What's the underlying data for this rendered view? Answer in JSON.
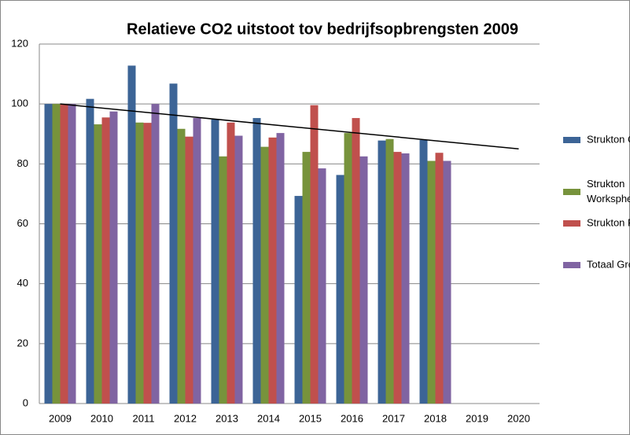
{
  "chart_data": {
    "type": "bar",
    "title": "Relatieve CO2 uitstoot tov bedrijfsopbrengsten 2009",
    "categories": [
      "2009",
      "2010",
      "2011",
      "2012",
      "2013",
      "2014",
      "2015",
      "2016",
      "2017",
      "2018",
      "2019",
      "2020"
    ],
    "series": [
      {
        "name": "Strukton Civiel",
        "color": "#3c6496",
        "values": [
          100,
          101.7,
          112.8,
          106.8,
          94.8,
          95.3,
          69.3,
          76.3,
          87.8,
          88.0,
          null,
          null
        ]
      },
      {
        "name": "Strukton Worksphere",
        "color": "#77933c",
        "values": [
          100,
          93.2,
          93.8,
          91.7,
          82.5,
          85.7,
          84.0,
          90.3,
          88.3,
          81.0,
          null,
          null
        ]
      },
      {
        "name": "Strukton Rail",
        "color": "#c0504d",
        "values": [
          100,
          95.5,
          93.7,
          89.1,
          93.8,
          88.8,
          99.6,
          95.3,
          84.0,
          83.7,
          null,
          null
        ]
      },
      {
        "name": "Totaal Groep",
        "color": "#8064a2",
        "values": [
          100,
          97.5,
          100,
          95.3,
          89.4,
          90.3,
          78.5,
          82.5,
          83.5,
          81.0,
          null,
          null
        ]
      }
    ],
    "trendline": {
      "color": "#000000",
      "values": [
        100,
        85
      ]
    },
    "ylim": [
      0,
      120
    ],
    "yticks": [
      0,
      20,
      40,
      60,
      80,
      100,
      120
    ],
    "grid": true,
    "legend": "right"
  }
}
